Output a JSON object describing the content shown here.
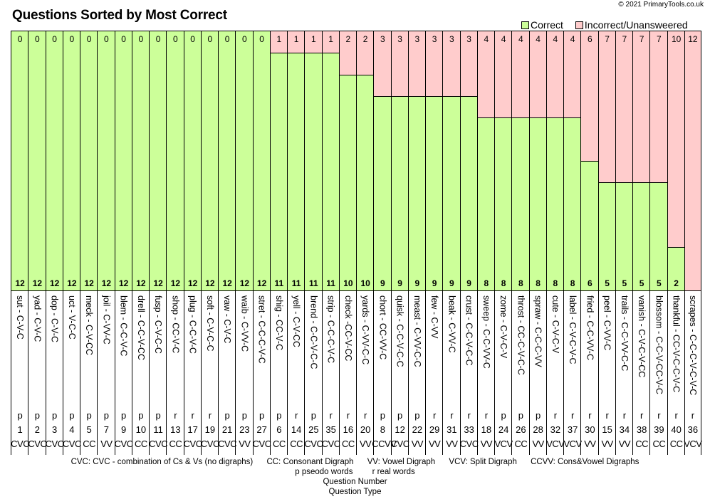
{
  "header": {
    "title": "Questions Sorted by Most Correct",
    "copyright": "© 2021 PrimaryTools.co.uk"
  },
  "legend": {
    "correct_label": "Correct",
    "incorrect_label": "Incorrect/Unansweered",
    "correct_color": "#ccff99",
    "incorrect_color": "#ffcccc"
  },
  "footer": {
    "key_cvc": "CVC: CVC - combination of Cs & Vs (no digraphs)",
    "key_cc": "CC: Consonant Digraph",
    "key_vv": "VV: Vowel Digraph",
    "key_vcv": "VCV: Split Digraph",
    "key_ccvv": "CCVV: Cons&Vowel Digraphs",
    "key_p": "p pseodo words",
    "key_r": "r real words",
    "axis_question_number": "Question Number",
    "axis_question_type": "Question Type"
  },
  "chart_data": {
    "type": "bar",
    "stacked": true,
    "title": "Questions Sorted by Most Correct",
    "xlabel": "Question Number / Question Type",
    "ylabel": "",
    "ylim": [
      0,
      12
    ],
    "grid": false,
    "legend_position": "top-right",
    "categories": [
      "sut - C-V-C",
      "yad - C-V-C",
      "dop - C-V-C",
      "uct - V-C-C",
      "meck - C-V-CC",
      "joil - C-VV-C",
      "blem - C-C-V-C",
      "drell - C-C-V-CC",
      "fusp - C-V-C-C",
      "shop - CC-V-C",
      "plug - C-C-V-C",
      "soft - C-V-C-C",
      "vaw - C-V-C",
      "waib - C-VV-C",
      "stret - C-C-C-V-C",
      "shig - CC-V-C",
      "yell - C-V-CC",
      "brend - C-C-V-C-C",
      "strip - C-C-C-V-C",
      "check -CC-V-CC",
      "yards - C-VV-C-C",
      "chort - CC-VV-C",
      "quisk - C-C-V-C-C",
      "meast - C-VV-C-C",
      "few - C-VV",
      "beak - C-VV-C",
      "crust - C-C-V-C-C",
      "sweep - C-C-VV-C",
      "zome - C-V-C-V",
      "throst - CC-C-V-C-C",
      "spraw - C-C-C-VV",
      "cute - C-V-C-V",
      "label - C-V-C-V-C",
      "fried - C-C-VV-C",
      "peel - C-VV-C",
      "trails - C-C-VV-C-C",
      "vanish - C-V-C-V-CC",
      "blossom - C-C-V-CC-V-C",
      "thankful - CC-V-C-C-V-C",
      "scrapes - C-C-C-V-C-V-C"
    ],
    "word_type": [
      "p",
      "p",
      "p",
      "p",
      "p",
      "p",
      "p",
      "p",
      "p",
      "r",
      "r",
      "r",
      "p",
      "p",
      "p",
      "p",
      "r",
      "p",
      "r",
      "r",
      "r",
      "p",
      "p",
      "p",
      "r",
      "r",
      "r",
      "r",
      "p",
      "p",
      "p",
      "r",
      "r",
      "r",
      "r",
      "r",
      "r",
      "r",
      "r",
      "r"
    ],
    "question_number": [
      1,
      2,
      3,
      4,
      5,
      7,
      9,
      10,
      11,
      13,
      17,
      19,
      21,
      23,
      27,
      6,
      14,
      25,
      35,
      16,
      20,
      8,
      12,
      22,
      29,
      31,
      33,
      18,
      24,
      26,
      28,
      32,
      37,
      30,
      15,
      34,
      38,
      39,
      40,
      36
    ],
    "question_type": [
      "CVC",
      "CVC",
      "CVC",
      "CVC",
      "CC",
      "VV",
      "CVC",
      "CC",
      "CVC",
      "CC",
      "CVC",
      "CVC",
      "CVC",
      "VV",
      "CVC",
      "CC",
      "CC",
      "CVC",
      "CVC",
      "CC",
      "VV",
      "CCVV",
      "CVC",
      "VV",
      "VV",
      "VV",
      "CVC",
      "VV",
      "VCV",
      "CC",
      "VV",
      "VCV",
      "VCV",
      "VV",
      "VV",
      "VV",
      "CC",
      "CC",
      "CC",
      "VCV"
    ],
    "series": [
      {
        "name": "Correct",
        "color": "#ccff99",
        "values": [
          12,
          12,
          12,
          12,
          12,
          12,
          12,
          12,
          12,
          12,
          12,
          12,
          12,
          12,
          12,
          11,
          11,
          11,
          11,
          10,
          10,
          9,
          9,
          9,
          9,
          9,
          9,
          8,
          8,
          8,
          8,
          8,
          8,
          6,
          5,
          5,
          5,
          5,
          2,
          0
        ]
      },
      {
        "name": "Incorrect/Unansweered",
        "color": "#ffcccc",
        "values": [
          0,
          0,
          0,
          0,
          0,
          0,
          0,
          0,
          0,
          0,
          0,
          0,
          0,
          0,
          0,
          1,
          1,
          1,
          1,
          2,
          2,
          3,
          3,
          3,
          3,
          3,
          3,
          4,
          4,
          4,
          4,
          4,
          4,
          6,
          7,
          7,
          7,
          7,
          10,
          12
        ]
      }
    ]
  }
}
